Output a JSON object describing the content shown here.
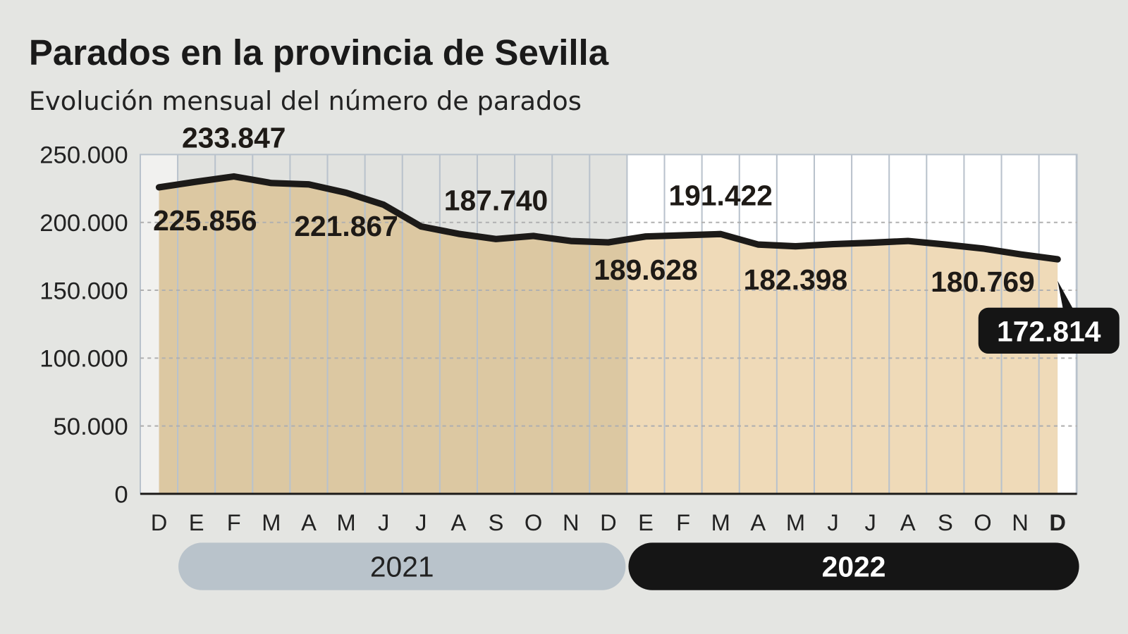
{
  "chart_data": {
    "type": "area",
    "title": "Parados en la provincia de Sevilla",
    "subtitle": "Evolución mensual del número de parados",
    "xlabel": "",
    "ylabel": "",
    "ylim": [
      0,
      250000
    ],
    "y_ticks": [
      "250.000",
      "200.000",
      "150.000",
      "100.000",
      "50.000",
      "0"
    ],
    "y_tick_values": [
      250000,
      200000,
      150000,
      100000,
      50000,
      0
    ],
    "categories": [
      "D",
      "E",
      "F",
      "M",
      "A",
      "M",
      "J",
      "J",
      "A",
      "S",
      "O",
      "N",
      "D",
      "E",
      "F",
      "M",
      "A",
      "M",
      "J",
      "J",
      "A",
      "S",
      "O",
      "N",
      "D"
    ],
    "years": [
      {
        "label": "2021",
        "start": 1,
        "end": 12
      },
      {
        "label": "2022",
        "start": 13,
        "end": 24
      }
    ],
    "values": [
      225856,
      230000,
      233847,
      229000,
      228000,
      221867,
      213000,
      197000,
      191600,
      187740,
      190000,
      186300,
      185300,
      189628,
      190500,
      191422,
      183700,
      182398,
      184000,
      185000,
      186300,
      183700,
      180769,
      176500,
      172814
    ],
    "data_labels": [
      {
        "index": 0,
        "text": "225.856",
        "pos": "below"
      },
      {
        "index": 2,
        "text": "233.847",
        "pos": "above"
      },
      {
        "index": 5,
        "text": "221.867",
        "pos": "below"
      },
      {
        "index": 9,
        "text": "187.740",
        "pos": "above"
      },
      {
        "index": 13,
        "text": "189.628",
        "pos": "below"
      },
      {
        "index": 15,
        "text": "191.422",
        "pos": "above"
      },
      {
        "index": 17,
        "text": "182.398",
        "pos": "below"
      },
      {
        "index": 22,
        "text": "180.769",
        "pos": "below"
      }
    ],
    "highlight_label": {
      "index": 24,
      "text": "172.814"
    },
    "grid": true,
    "colors": {
      "fill_2021": "#dcc8a2",
      "fill_2022": "#efdab8",
      "bg_2021": "#e1e2df",
      "bg_2022": "#ffffff",
      "line": "#1c1a18",
      "pill_2021": "#b9c3cb",
      "pill_2022": "#151515"
    }
  }
}
